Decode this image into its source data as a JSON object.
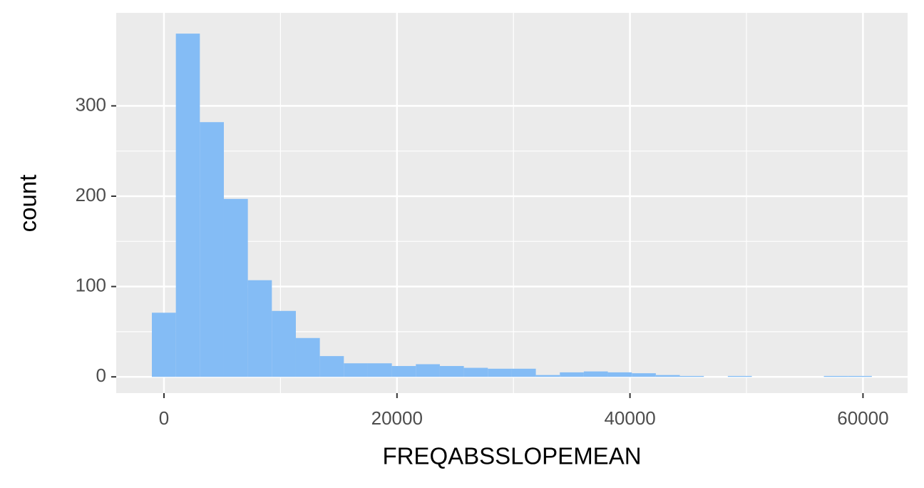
{
  "chart_data": {
    "type": "histogram",
    "x_label": "FREQABSSLOPEMEAN",
    "y_label": "count",
    "bins": [
      -1040,
      1020,
      3080,
      5140,
      7200,
      9260,
      11320,
      13380,
      15440,
      17500,
      19560,
      21620,
      23680,
      25740,
      27800,
      29860,
      31920,
      33980,
      36040,
      38100,
      40160,
      42220,
      44280,
      46340,
      48400,
      50460,
      52520,
      54580,
      56640,
      58700,
      60760
    ],
    "values": [
      71,
      380,
      282,
      197,
      107,
      73,
      43,
      23,
      15,
      15,
      12,
      14,
      12,
      10,
      9,
      9,
      2,
      5,
      6,
      5,
      4,
      2,
      1,
      0,
      1,
      0,
      0,
      0,
      1,
      1
    ],
    "color": "#84bcf5",
    "xlim": [
      -4100,
      63830
    ],
    "ylim": [
      -18,
      403
    ],
    "xticks": [
      0,
      20000,
      40000,
      60000
    ],
    "yticks": [
      0,
      100,
      200,
      300
    ],
    "grid": true
  }
}
